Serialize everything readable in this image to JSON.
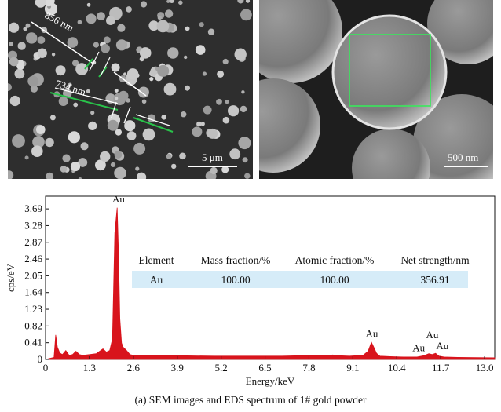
{
  "sem_left": {
    "measure_1": "856 nm",
    "measure_2": "734 nm",
    "scale_bar": "5 μm"
  },
  "sem_right": {
    "scale_bar": "500 nm"
  },
  "colors": {
    "spectrum": "#d8141c",
    "measure_line": "#29c24a",
    "roi_box": "#39e85c",
    "table_highlight": "#d6ecf8"
  },
  "chart_data": {
    "type": "area",
    "xlabel": "Energy/keV",
    "ylabel": "cps/eV",
    "xlim": [
      0,
      13.3
    ],
    "ylim": [
      0,
      4.0
    ],
    "x_ticks": [
      "0",
      "1.3",
      "2.6",
      "3.9",
      "5.2",
      "6.5",
      "7.8",
      "9.1",
      "10.4",
      "11.7",
      "13.0"
    ],
    "y_ticks": [
      "0",
      "0.41",
      "0.82",
      "1.23",
      "1.64",
      "2.05",
      "2.46",
      "2.87",
      "3.28",
      "3.69"
    ],
    "series": [
      {
        "x": [
          0.0,
          0.25,
          0.3,
          0.35,
          0.42,
          0.5,
          0.6,
          0.7,
          0.8,
          0.9,
          0.95,
          1.0,
          1.1,
          1.3,
          1.5,
          1.6,
          1.7,
          1.8,
          1.9,
          1.98,
          2.05,
          2.12,
          2.16,
          2.2,
          2.25,
          2.3,
          2.4,
          2.5,
          2.6,
          3.0,
          4.0,
          5.0,
          6.0,
          7.0,
          7.5,
          7.8,
          8.0,
          8.3,
          8.5,
          8.6,
          8.7,
          9.0,
          9.4,
          9.55,
          9.65,
          9.72,
          9.8,
          9.9,
          10.2,
          10.6,
          11.0,
          11.2,
          11.35,
          11.45,
          11.55,
          11.65,
          11.8,
          12.2,
          13.3
        ],
        "values": [
          0.0,
          0.05,
          0.6,
          0.3,
          0.16,
          0.12,
          0.22,
          0.1,
          0.12,
          0.2,
          0.16,
          0.12,
          0.1,
          0.12,
          0.14,
          0.2,
          0.26,
          0.18,
          0.22,
          0.5,
          3.1,
          3.72,
          2.6,
          1.0,
          0.4,
          0.3,
          0.22,
          0.12,
          0.1,
          0.1,
          0.09,
          0.08,
          0.08,
          0.08,
          0.09,
          0.09,
          0.1,
          0.09,
          0.11,
          0.1,
          0.09,
          0.08,
          0.1,
          0.2,
          0.42,
          0.3,
          0.15,
          0.08,
          0.07,
          0.06,
          0.06,
          0.09,
          0.14,
          0.12,
          0.15,
          0.08,
          0.06,
          0.05,
          0.04
        ]
      }
    ],
    "peak_labels": [
      {
        "text": "Au",
        "x": 2.16,
        "y": 3.85
      },
      {
        "text": "Au",
        "x": 9.66,
        "y": 0.55
      },
      {
        "text": "Au",
        "x": 11.45,
        "y": 0.52
      },
      {
        "text": "Au",
        "x": 11.05,
        "y": 0.2
      },
      {
        "text": "Au",
        "x": 11.75,
        "y": 0.25
      }
    ],
    "table": {
      "headers": [
        "Element",
        "Mass fraction/%",
        "Atomic fraction/%",
        "Net strength/nm"
      ],
      "rows": [
        [
          "Au",
          "100.00",
          "100.00",
          "356.91"
        ]
      ]
    }
  },
  "caption": "(a) SEM images and EDS spectrum of 1# gold powder"
}
